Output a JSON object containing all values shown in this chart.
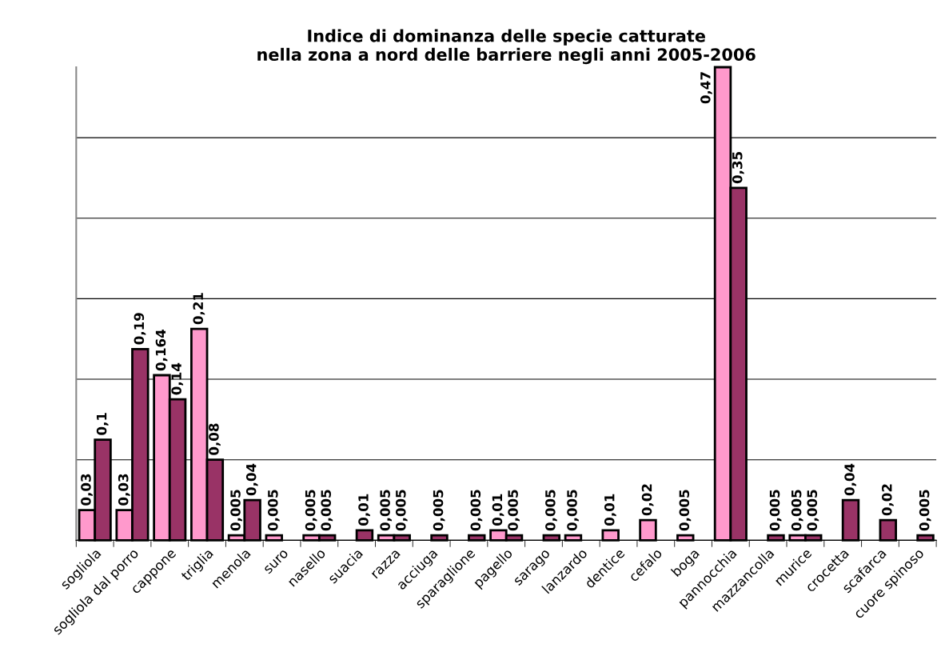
{
  "chart_data": {
    "type": "bar",
    "title": "Indice di dominanza delle specie catturate\nnella zona a nord delle barriere negli anni 2005-2006",
    "categories": [
      "sogliola",
      "sogliola dal porro",
      "cappone",
      "triglia",
      "menola",
      "suro",
      "nasello",
      "suacia",
      "razza",
      "acciuga",
      "sparaglione",
      "pagello",
      "sarago",
      "lanzardo",
      "dentice",
      "cefalo",
      "boga",
      "pannocchia",
      "mazzancolla",
      "murice",
      "crocetta",
      "scafarca",
      "cuore spinoso"
    ],
    "series": [
      {
        "color": "#ff99cc",
        "values": [
          0.03,
          0.03,
          0.164,
          0.21,
          0.005,
          0.005,
          0.005,
          null,
          0.005,
          null,
          null,
          0.01,
          null,
          0.005,
          0.01,
          0.02,
          0.005,
          0.47,
          null,
          0.005,
          null,
          null,
          null
        ],
        "value_labels": [
          "0,03",
          "0,03",
          "0,164",
          "0,21",
          "0,005",
          "0,005",
          "0,005",
          null,
          "0,005",
          null,
          null,
          "0,01",
          null,
          "0,005",
          "0,01",
          "0,02",
          "0,005",
          "0,47",
          null,
          "0,005",
          null,
          null,
          null
        ]
      },
      {
        "color": "#993366",
        "values": [
          0.1,
          0.19,
          0.14,
          0.08,
          0.04,
          null,
          0.005,
          0.01,
          0.005,
          0.005,
          0.005,
          0.005,
          0.005,
          null,
          null,
          null,
          null,
          0.35,
          0.005,
          0.005,
          0.04,
          0.02,
          0.005
        ],
        "value_labels": [
          "0,1",
          "0,19",
          "0,14",
          "0,08",
          "0,04",
          null,
          "0,005",
          "0,01",
          "0,005",
          "0,005",
          "0,005",
          "0,005",
          "0,005",
          null,
          null,
          null,
          null,
          "0,35",
          "0,005",
          "0,005",
          "0,04",
          "0,02",
          "0,005"
        ]
      }
    ],
    "ylim": [
      0,
      0.47
    ],
    "yticks": [
      {
        "value": 0,
        "label": null
      },
      {
        "value": 0.08,
        "label": null
      },
      {
        "value": 0.16,
        "label": null
      },
      {
        "value": 0.24,
        "label": null
      },
      {
        "value": 0.32,
        "label": null
      },
      {
        "value": 0.4,
        "label": null
      }
    ],
    "grid": "y",
    "tick_labels": "x",
    "legend": false
  }
}
